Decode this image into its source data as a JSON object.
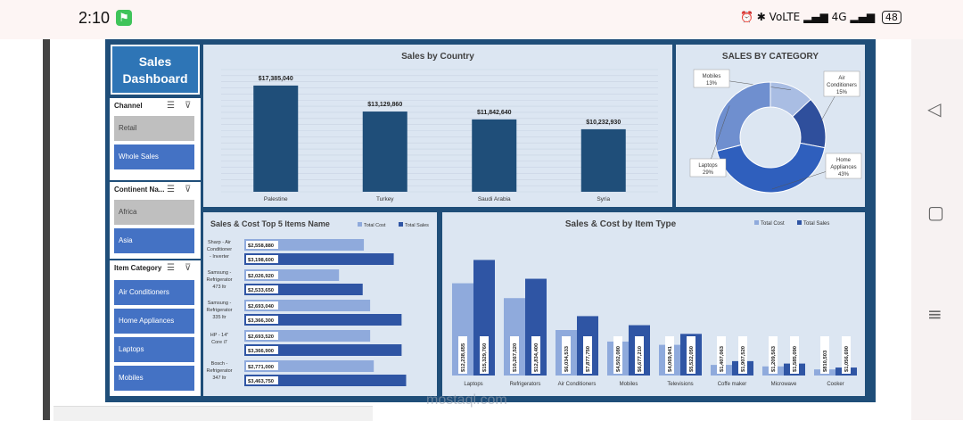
{
  "status_bar": {
    "time": "2:10",
    "network": "VoLTE",
    "signal": "4G",
    "battery": "48"
  },
  "dashboard": {
    "title_line1": "Sales",
    "title_line2": "Dashboard",
    "slicers": [
      {
        "header": "Channel",
        "items": [
          {
            "label": "Retail",
            "selected": false
          },
          {
            "label": "Whole Sales",
            "selected": true
          }
        ]
      },
      {
        "header": "Continent Na...",
        "items": [
          {
            "label": "Africa",
            "selected": false
          },
          {
            "label": "Asia",
            "selected": true
          }
        ]
      },
      {
        "header": "Item Category",
        "items": [
          {
            "label": "Air Conditioners",
            "selected": true
          },
          {
            "label": "Home Appliances",
            "selected": true
          },
          {
            "label": "Laptops",
            "selected": true
          },
          {
            "label": "Mobiles",
            "selected": true
          }
        ]
      }
    ],
    "colors": {
      "dark_bar": "#1f4e79",
      "total_cost": "#8faadc",
      "total_sales": "#2f55a4",
      "panel": "#dce6f2"
    },
    "watermark": "mostaql.com"
  },
  "chart_data": [
    {
      "type": "bar",
      "title": "Sales by Country",
      "categories": [
        "Palestine",
        "Turkey",
        "Saudi Arabia",
        "Syria"
      ],
      "values": [
        17385040,
        13129860,
        11842640,
        10232930
      ],
      "data_labels": [
        "$17,385,040",
        "$13,129,860",
        "$11,842,640",
        "$10,232,930"
      ],
      "ylim": [
        0,
        20000000
      ],
      "grid": true
    },
    {
      "type": "pie",
      "title": "SALES BY CATEGORY",
      "labels": [
        "Mobiles",
        "Air Conditioners",
        "Home Appliances",
        "Laptops"
      ],
      "values": [
        13,
        15,
        43,
        29
      ],
      "percent_labels": [
        "13%",
        "15%",
        "43%",
        "29%"
      ],
      "colors": [
        "#a9bde3",
        "#2f4f9c",
        "#2f5fbd",
        "#6f8fcf"
      ]
    },
    {
      "type": "bar",
      "title": "Sales & Cost Top 5 Items Name",
      "orientation": "horizontal",
      "categories": [
        [
          "Sharp - Air",
          "Conditioner",
          "- Inverter"
        ],
        [
          "Samsung -",
          "Refrigerator",
          "473 ltr"
        ],
        [
          "Samsung -",
          "Refrigerator",
          "335 ltr"
        ],
        [
          "HP - 14\"",
          "Core i7"
        ],
        [
          "Bosch -",
          "Refrigerator",
          "347 ltr"
        ]
      ],
      "series": [
        {
          "name": "Total Cost",
          "values": [
            2558880,
            2026920,
            2693040,
            2693520,
            2771000
          ],
          "labels": [
            "$2,558,880",
            "$2,026,920",
            "$2,693,040",
            "$2,693,520",
            "$2,771,000"
          ]
        },
        {
          "name": "Total Sales",
          "values": [
            3198600,
            2533650,
            3366300,
            3366900,
            3463750
          ],
          "labels": [
            "$3,198,600",
            "$2,533,650",
            "$3,366,300",
            "$3,366,900",
            "$3,463,750"
          ]
        }
      ],
      "legend": "top-right"
    },
    {
      "type": "bar",
      "title": "Sales & Cost by Item Type",
      "categories": [
        "Laptops",
        "Refrigerators",
        "Air Conditioners",
        "Mobiles",
        "Televisions",
        "Coffe maker",
        "Microwave",
        "Cooker"
      ],
      "series": [
        {
          "name": "Total Cost",
          "values": [
            12238655,
            10267520,
            6034533,
            4502080,
            4069941,
            1407063,
            1209563,
            810503
          ],
          "labels": [
            "$12,238,655",
            "$10,267,520",
            "$6,034,533",
            "$4,502,080",
            "$4,069,941",
            "$1,407,063",
            "$1,209,563",
            "$810,503"
          ]
        },
        {
          "name": "Total Sales",
          "values": [
            15329760,
            12834400,
            7877750,
            6677210,
            5522050,
            1907520,
            1585090,
            1056690
          ],
          "labels": [
            "$15,329,760",
            "$12,834,400",
            "$7,877,750",
            "$6,677,210",
            "$5,522,050",
            "$1,907,520",
            "$1,585,090",
            "$1,056,690"
          ]
        }
      ],
      "legend": "top-right"
    }
  ]
}
